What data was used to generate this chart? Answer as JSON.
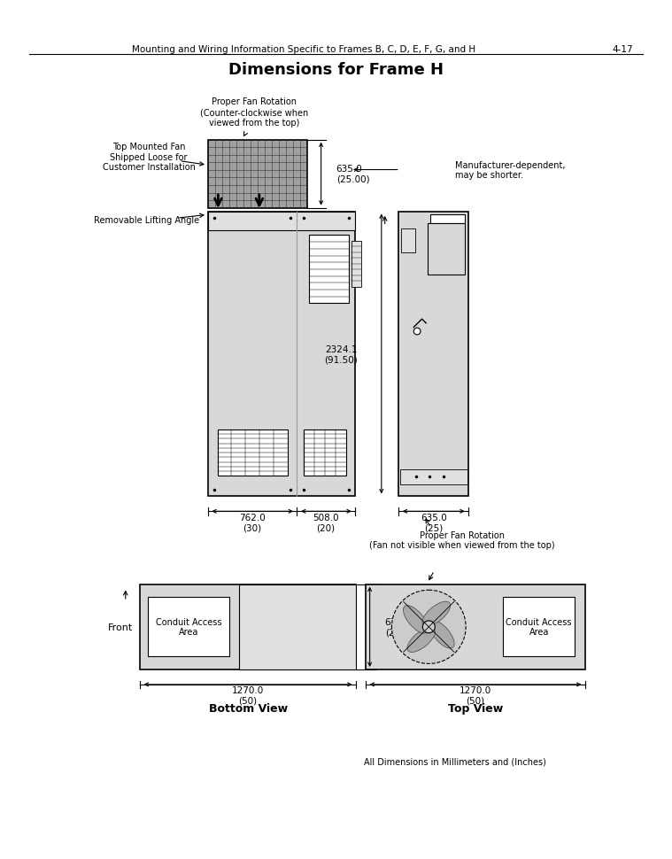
{
  "page_header_left": "Mounting and Wiring Information Specific to Frames B, C, D, E, F, G, and H",
  "page_header_right": "4-17",
  "title": "Dimensions for Frame H",
  "bg_color": "#ffffff",
  "annotations": {
    "fan_rotation_top": "Proper Fan Rotation\n(Counter-clockwise when\nviewed from the top)",
    "top_mounted_fan": "Top Mounted Fan\nShipped Loose for\nCustomer Installation",
    "removable_lifting": "Removable Lifting Angle",
    "manufacturer_dep": "Manufacturer-dependent,\nmay be shorter.",
    "dim_635_front": "635.0\n(25.00)",
    "dim_762": "762.0\n(30)",
    "dim_508": "508.0\n(20)",
    "dim_2324": "2324.1\n(91.50)",
    "dim_635_side": "635.0\n(25)",
    "fan_rotation_side": "Proper Fan Rotation\n(Fan not visible when viewed from the top)",
    "dim_635_bottom": "635.0\n(25)",
    "dim_1270_bottom": "1270.0\n(50)",
    "dim_1270_top": "1270.0\n(50)",
    "front_label": "Front",
    "bottom_view_label": "Bottom View",
    "top_view_label": "Top View",
    "conduit_bottom": "Conduit Access\nArea",
    "conduit_top": "Conduit Access\nArea",
    "all_dims": "All Dimensions in Millimeters and (Inches)"
  }
}
